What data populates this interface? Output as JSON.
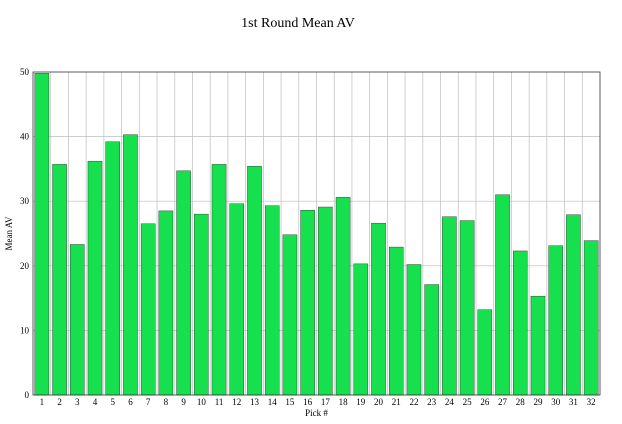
{
  "chart_data": {
    "type": "bar",
    "title": "1st Round Mean AV",
    "xlabel": "Pick #",
    "ylabel": "Mean AV",
    "categories": [
      "1",
      "2",
      "3",
      "4",
      "5",
      "6",
      "7",
      "8",
      "9",
      "10",
      "11",
      "12",
      "13",
      "14",
      "15",
      "16",
      "17",
      "18",
      "19",
      "20",
      "21",
      "22",
      "23",
      "24",
      "25",
      "26",
      "27",
      "28",
      "29",
      "30",
      "31",
      "32"
    ],
    "values": [
      49.8,
      35.7,
      23.3,
      36.2,
      39.2,
      40.3,
      26.5,
      28.5,
      34.7,
      28.0,
      35.7,
      29.6,
      35.4,
      29.3,
      24.8,
      28.6,
      29.1,
      30.6,
      20.3,
      26.6,
      22.9,
      20.2,
      17.1,
      27.6,
      27.0,
      13.2,
      31.0,
      22.3,
      15.3,
      23.1,
      27.9,
      23.9
    ],
    "ylim": [
      0,
      50
    ],
    "yticks": [
      "0",
      "10",
      "20",
      "30",
      "40",
      "50"
    ],
    "grid": true,
    "bar_color": "#16e04d"
  }
}
